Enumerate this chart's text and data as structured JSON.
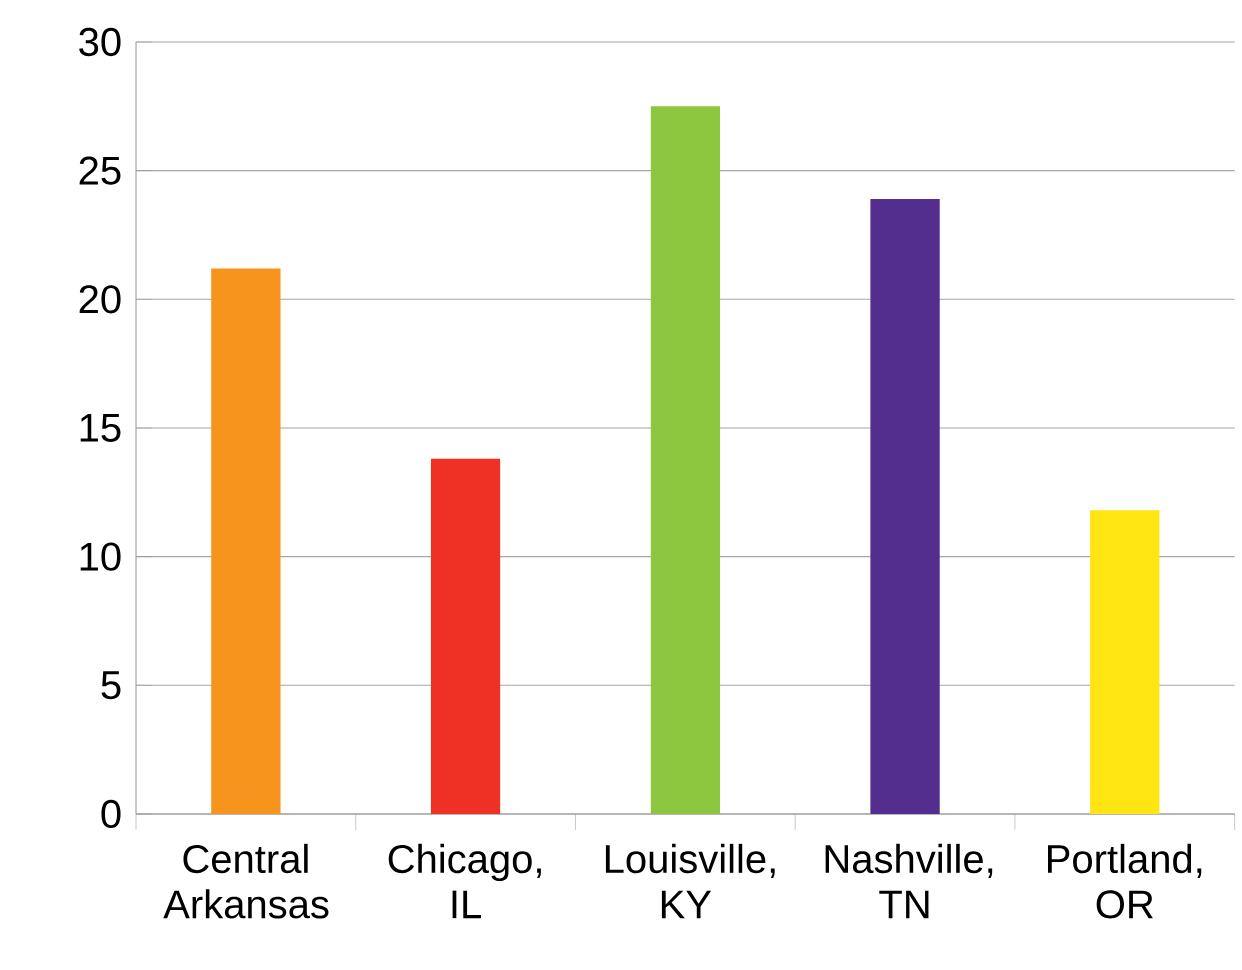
{
  "chart_data": {
    "type": "bar",
    "categories": [
      "Central Arkansas",
      "Chicago, IL",
      "Louisville, KY",
      "Nashville, TN",
      "Portland, OR"
    ],
    "values": [
      21.2,
      13.8,
      27.5,
      23.9,
      11.8
    ],
    "colors": [
      "#f7941d",
      "#ee3124",
      "#8dc63f",
      "#542e8e",
      "#ffe512"
    ],
    "ylim": [
      0,
      30
    ],
    "yticks": [
      0,
      5,
      10,
      15,
      20,
      25,
      30
    ],
    "grid": "y"
  }
}
